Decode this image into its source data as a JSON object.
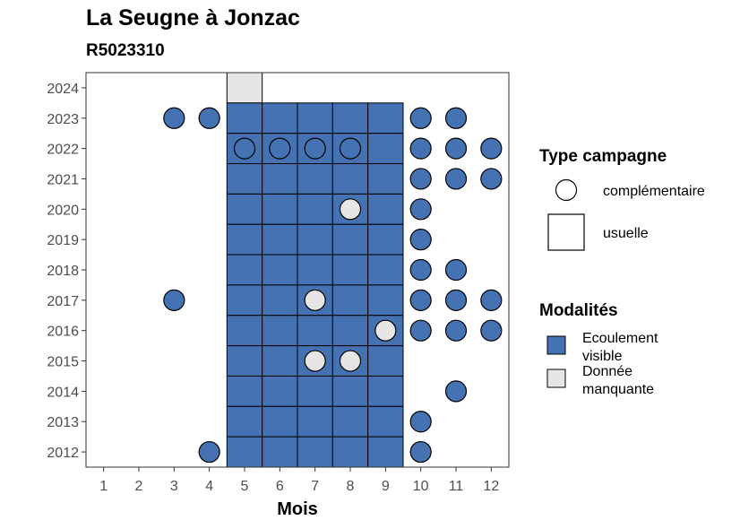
{
  "title": "La Seugne à Jonzac",
  "subtitle": "R5023310",
  "chart_data": {
    "type": "scatter",
    "title": "La Seugne à Jonzac",
    "subtitle": "R5023310",
    "xlabel": "Mois",
    "ylabel": "",
    "x_ticks": [
      1,
      2,
      3,
      4,
      5,
      6,
      7,
      8,
      9,
      10,
      11,
      12
    ],
    "y_ticks": [
      2012,
      2013,
      2014,
      2015,
      2016,
      2017,
      2018,
      2019,
      2020,
      2021,
      2022,
      2023,
      2024
    ],
    "xlim": [
      0.5,
      12.5
    ],
    "ylim": [
      2011.5,
      2024.5
    ],
    "grid": false,
    "legend_position": "right",
    "colors": {
      "Ecoulement visible": "#4472b3",
      "Donnée manquante": "#e6e6e6"
    },
    "legend": {
      "shape_title": "Type campagne",
      "shape_items": [
        {
          "label": "complémentaire",
          "shape": "circle"
        },
        {
          "label": "usuelle",
          "shape": "square"
        }
      ],
      "fill_title": "Modalités",
      "fill_items": [
        {
          "label_lines": [
            "Ecoulement",
            "visible"
          ],
          "value": "Ecoulement visible"
        },
        {
          "label_lines": [
            "Donnée",
            "manquante"
          ],
          "value": "Donnée manquante"
        }
      ]
    },
    "usuelle": [
      {
        "year": 2024,
        "months": [
          5
        ],
        "modalite": "Donnée manquante"
      },
      {
        "year": 2023,
        "months": [
          5,
          6,
          7,
          8,
          9
        ],
        "modalite": "Ecoulement visible"
      },
      {
        "year": 2022,
        "months": [
          5,
          6,
          7,
          8,
          9
        ],
        "modalite": "Ecoulement visible"
      },
      {
        "year": 2021,
        "months": [
          5,
          6,
          7,
          8,
          9
        ],
        "modalite": "Ecoulement visible"
      },
      {
        "year": 2020,
        "months": [
          5,
          6,
          7,
          8,
          9
        ],
        "modalite": "Ecoulement visible"
      },
      {
        "year": 2019,
        "months": [
          5,
          6,
          7,
          8,
          9
        ],
        "modalite": "Ecoulement visible"
      },
      {
        "year": 2018,
        "months": [
          5,
          6,
          7,
          8,
          9
        ],
        "modalite": "Ecoulement visible"
      },
      {
        "year": 2017,
        "months": [
          5,
          6,
          7,
          8,
          9
        ],
        "modalite": "Ecoulement visible"
      },
      {
        "year": 2016,
        "months": [
          5,
          6,
          7,
          8,
          9
        ],
        "modalite": "Ecoulement visible"
      },
      {
        "year": 2015,
        "months": [
          5,
          6,
          7,
          8,
          9
        ],
        "modalite": "Ecoulement visible"
      },
      {
        "year": 2014,
        "months": [
          5,
          6,
          7,
          8,
          9
        ],
        "modalite": "Ecoulement visible"
      },
      {
        "year": 2013,
        "months": [
          5,
          6,
          7,
          8,
          9
        ],
        "modalite": "Ecoulement visible"
      },
      {
        "year": 2012,
        "months": [
          5,
          6,
          7,
          8,
          9
        ],
        "modalite": "Ecoulement visible"
      }
    ],
    "complementaire": [
      {
        "year": 2023,
        "month": 3,
        "modalite": "Ecoulement visible"
      },
      {
        "year": 2023,
        "month": 4,
        "modalite": "Ecoulement visible"
      },
      {
        "year": 2023,
        "month": 10,
        "modalite": "Ecoulement visible"
      },
      {
        "year": 2023,
        "month": 11,
        "modalite": "Ecoulement visible"
      },
      {
        "year": 2022,
        "month": 5,
        "modalite": "Ecoulement visible"
      },
      {
        "year": 2022,
        "month": 6,
        "modalite": "Ecoulement visible"
      },
      {
        "year": 2022,
        "month": 7,
        "modalite": "Ecoulement visible"
      },
      {
        "year": 2022,
        "month": 8,
        "modalite": "Ecoulement visible"
      },
      {
        "year": 2022,
        "month": 10,
        "modalite": "Ecoulement visible"
      },
      {
        "year": 2022,
        "month": 11,
        "modalite": "Ecoulement visible"
      },
      {
        "year": 2022,
        "month": 12,
        "modalite": "Ecoulement visible"
      },
      {
        "year": 2021,
        "month": 10,
        "modalite": "Ecoulement visible"
      },
      {
        "year": 2021,
        "month": 11,
        "modalite": "Ecoulement visible"
      },
      {
        "year": 2021,
        "month": 12,
        "modalite": "Ecoulement visible"
      },
      {
        "year": 2020,
        "month": 8,
        "modalite": "Donnée manquante"
      },
      {
        "year": 2020,
        "month": 10,
        "modalite": "Ecoulement visible"
      },
      {
        "year": 2019,
        "month": 10,
        "modalite": "Ecoulement visible"
      },
      {
        "year": 2018,
        "month": 10,
        "modalite": "Ecoulement visible"
      },
      {
        "year": 2018,
        "month": 11,
        "modalite": "Ecoulement visible"
      },
      {
        "year": 2017,
        "month": 3,
        "modalite": "Ecoulement visible"
      },
      {
        "year": 2017,
        "month": 7,
        "modalite": "Donnée manquante"
      },
      {
        "year": 2017,
        "month": 10,
        "modalite": "Ecoulement visible"
      },
      {
        "year": 2017,
        "month": 11,
        "modalite": "Ecoulement visible"
      },
      {
        "year": 2017,
        "month": 12,
        "modalite": "Ecoulement visible"
      },
      {
        "year": 2016,
        "month": 9,
        "modalite": "Donnée manquante"
      },
      {
        "year": 2016,
        "month": 10,
        "modalite": "Ecoulement visible"
      },
      {
        "year": 2016,
        "month": 11,
        "modalite": "Ecoulement visible"
      },
      {
        "year": 2016,
        "month": 12,
        "modalite": "Ecoulement visible"
      },
      {
        "year": 2015,
        "month": 7,
        "modalite": "Donnée manquante"
      },
      {
        "year": 2015,
        "month": 8,
        "modalite": "Donnée manquante"
      },
      {
        "year": 2014,
        "month": 11,
        "modalite": "Ecoulement visible"
      },
      {
        "year": 2013,
        "month": 10,
        "modalite": "Ecoulement visible"
      },
      {
        "year": 2012,
        "month": 4,
        "modalite": "Ecoulement visible"
      },
      {
        "year": 2012,
        "month": 10,
        "modalite": "Ecoulement visible"
      }
    ]
  }
}
